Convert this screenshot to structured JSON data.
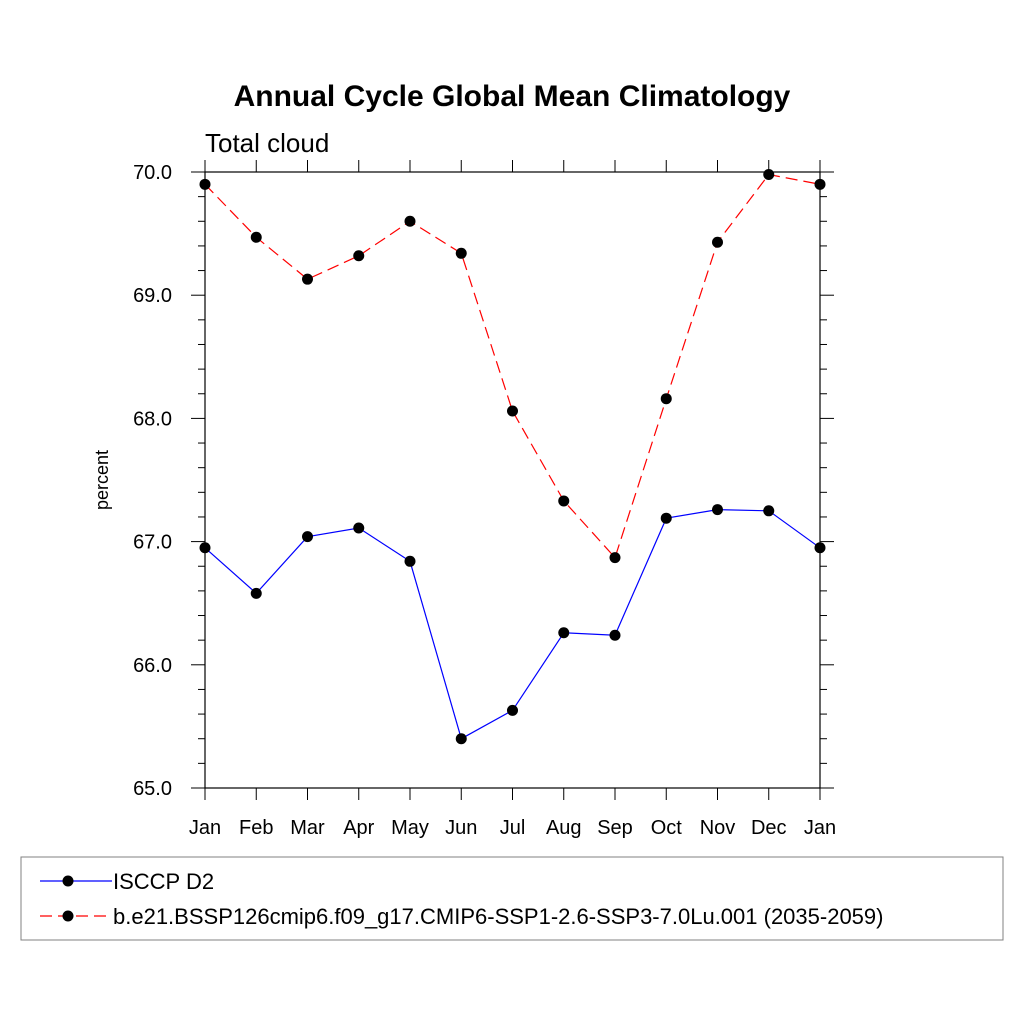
{
  "chart_data": {
    "type": "line",
    "title": "Annual Cycle Global Mean Climatology",
    "subtitle": "Total cloud",
    "xlabel": "",
    "ylabel": "percent",
    "categories": [
      "Jan",
      "Feb",
      "Mar",
      "Apr",
      "May",
      "Jun",
      "Jul",
      "Aug",
      "Sep",
      "Oct",
      "Nov",
      "Dec",
      "Jan"
    ],
    "ylim": [
      65.0,
      70.0
    ],
    "yticks": [
      65.0,
      66.0,
      67.0,
      68.0,
      69.0,
      70.0
    ],
    "ytick_labels": [
      "65.0",
      "66.0",
      "67.0",
      "68.0",
      "69.0",
      "70.0"
    ],
    "series": [
      {
        "name": "ISCCP D2",
        "color": "#0000ff",
        "style": "solid",
        "values": [
          66.95,
          66.58,
          67.04,
          67.11,
          66.84,
          65.4,
          65.63,
          66.26,
          66.24,
          67.19,
          67.26,
          67.25,
          66.95
        ]
      },
      {
        "name": "b.e21.BSSP126cmip6.f09_g17.CMIP6-SSP1-2.6-SSP3-7.0Lu.001 (2035-2059)",
        "color": "#ff0000",
        "style": "dashed",
        "values": [
          69.9,
          69.47,
          69.13,
          69.32,
          69.6,
          69.34,
          68.06,
          67.33,
          66.87,
          68.16,
          69.43,
          69.98,
          69.9
        ]
      }
    ],
    "grid": false,
    "legend_position": "bottom"
  }
}
